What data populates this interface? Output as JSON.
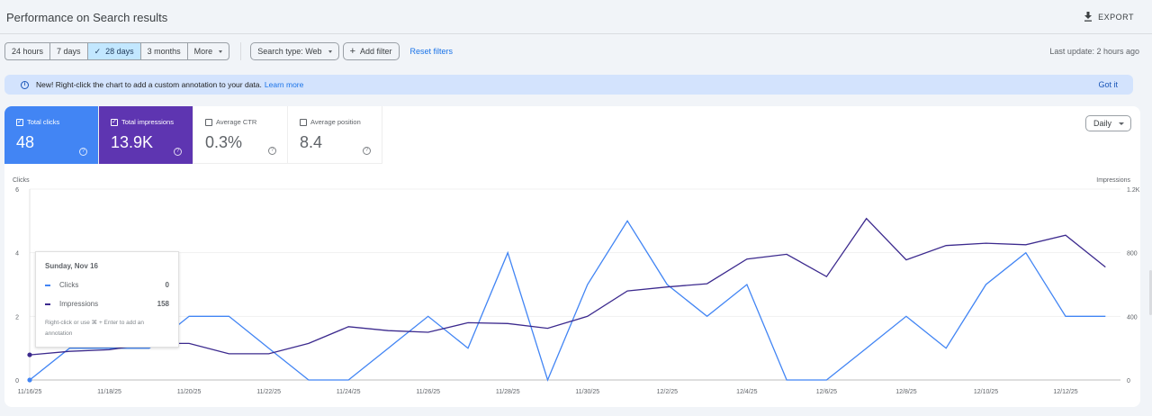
{
  "header": {
    "title": "Performance on Search results",
    "export_label": "EXPORT",
    "export_icon": "download-icon"
  },
  "toolbar": {
    "date_ranges": [
      {
        "label": "24 hours",
        "active": false
      },
      {
        "label": "7 days",
        "active": false
      },
      {
        "label": "28 days",
        "active": true
      },
      {
        "label": "3 months",
        "active": false
      },
      {
        "label": "More",
        "active": false
      }
    ],
    "active_check": "✓",
    "search_type": "Search type: Web",
    "add_filter": "Add filter",
    "add_icon": "+",
    "reset_filters": "Reset filters",
    "last_update": "Last update: 2 hours ago"
  },
  "banner": {
    "icon": "i",
    "text": "New! Right-click the chart to add a custom annotation to your data.",
    "learn_more": "Learn more",
    "got_it": "Got it"
  },
  "metrics": [
    {
      "label": "Total clicks",
      "value": "48",
      "checked": true,
      "color": "#4285f4"
    },
    {
      "label": "Total impressions",
      "value": "13.9K",
      "checked": true,
      "color": "#5e35b1"
    },
    {
      "label": "Average CTR",
      "value": "0.3%",
      "checked": false
    },
    {
      "label": "Average position",
      "value": "8.4",
      "checked": false
    }
  ],
  "granularity": "Daily",
  "tooltip": {
    "date": "Sunday, Nov 16",
    "rows": [
      {
        "name": "Clicks",
        "value": "0",
        "color": "#4285f4"
      },
      {
        "name": "Impressions",
        "value": "158",
        "color": "#5e35b1"
      }
    ],
    "hint": "Right-click or use ⌘ + Enter to add an annotation"
  },
  "chart_data": {
    "type": "line",
    "title": "",
    "x": [
      "11/16/25",
      "11/17/25",
      "11/18/25",
      "11/19/25",
      "11/20/25",
      "11/21/25",
      "11/22/25",
      "11/23/25",
      "11/24/25",
      "11/25/25",
      "11/26/25",
      "11/27/25",
      "11/28/25",
      "11/29/25",
      "11/30/25",
      "12/1/25",
      "12/2/25",
      "12/3/25",
      "12/4/25",
      "12/5/25",
      "12/6/25",
      "12/7/25",
      "12/8/25",
      "12/9/25",
      "12/10/25",
      "12/11/25",
      "12/12/25",
      "12/13/25"
    ],
    "x_tick_labels": [
      "11/16/25",
      "11/18/25",
      "11/20/25",
      "11/22/25",
      "11/24/25",
      "11/26/25",
      "11/28/25",
      "11/30/25",
      "12/2/25",
      "12/4/25",
      "12/6/25",
      "12/8/25",
      "12/10/25",
      "12/12/25"
    ],
    "series": [
      {
        "name": "Clicks",
        "axis": "left",
        "color": "#4285f4",
        "values": [
          0,
          1,
          1,
          1,
          2,
          2,
          1,
          0,
          0,
          1,
          2,
          1,
          4,
          0,
          3,
          5,
          3,
          2,
          3,
          0,
          0,
          1,
          2,
          1,
          3,
          4,
          2,
          2
        ]
      },
      {
        "name": "Impressions",
        "axis": "right",
        "color": "#5e35b1",
        "values": [
          158,
          180,
          190,
          230,
          230,
          165,
          165,
          230,
          335,
          310,
          300,
          360,
          355,
          325,
          400,
          560,
          585,
          605,
          760,
          790,
          650,
          1015,
          755,
          845,
          860,
          850,
          910,
          710
        ]
      }
    ],
    "ylabel_left": "Clicks",
    "ylabel_right": "Impressions",
    "ylim_left": [
      0,
      6
    ],
    "yticks_left": [
      "0",
      "2",
      "4",
      "6"
    ],
    "ylim_right": [
      0,
      1200
    ],
    "yticks_right": [
      "0",
      "400",
      "800",
      "1.2K"
    ],
    "grid": true,
    "legend": "none"
  }
}
